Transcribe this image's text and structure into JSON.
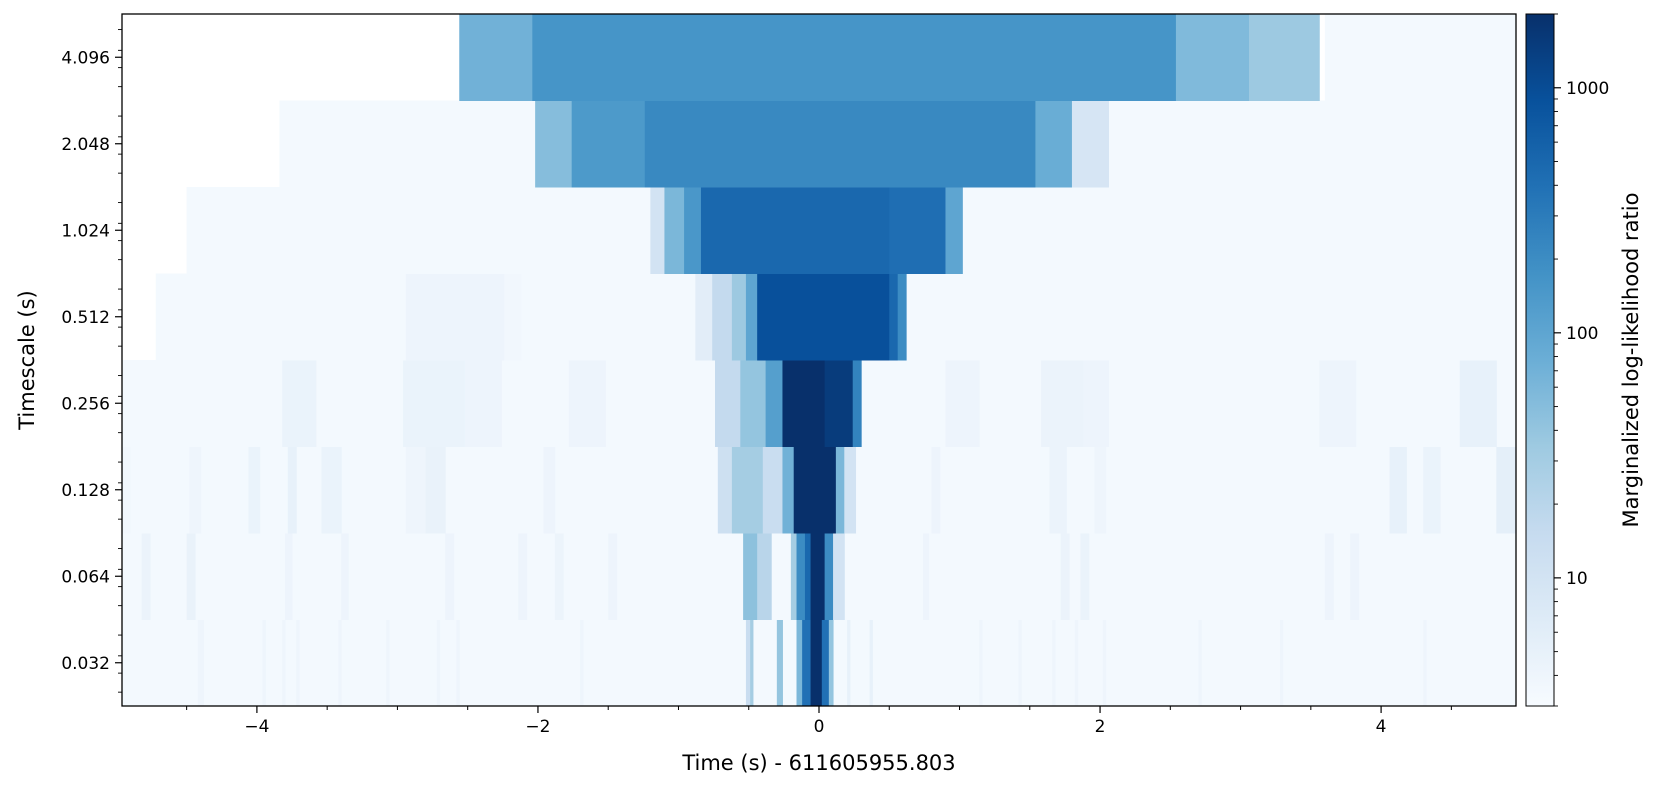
{
  "chart_data": {
    "type": "heatmap",
    "xlabel": "Time (s) - 611605955.803",
    "ylabel": "Timescale (s)",
    "colorbar_label": "Marginalized log-likelihood ratio",
    "colormap": [
      "#f7fbff",
      "#deebf7",
      "#c6dbef",
      "#9ecae1",
      "#6baed6",
      "#4292c6",
      "#2171b5",
      "#08519c",
      "#08306b"
    ],
    "colorbar_scale": "log",
    "colorbar_range": [
      3,
      2000
    ],
    "colorbar_ticks": [
      {
        "value": 10,
        "label": "10"
      },
      {
        "value": 100,
        "label": "100"
      },
      {
        "value": 1000,
        "label": "1000"
      }
    ],
    "xlim": [
      -4.96,
      4.96
    ],
    "x_ticks": [
      {
        "value": -4,
        "label": "−4"
      },
      {
        "value": -2,
        "label": "−2"
      },
      {
        "value": 0,
        "label": "0"
      },
      {
        "value": 2,
        "label": "2"
      },
      {
        "value": 4,
        "label": "4"
      }
    ],
    "y_ticks": [
      {
        "index": 0,
        "label": "0.032"
      },
      {
        "index": 1,
        "label": "0.064"
      },
      {
        "index": 2,
        "label": "0.128"
      },
      {
        "index": 3,
        "label": "0.256"
      },
      {
        "index": 4,
        "label": "0.512"
      },
      {
        "index": 5,
        "label": "1.024"
      },
      {
        "index": 6,
        "label": "2.048"
      },
      {
        "index": 7,
        "label": "4.096"
      }
    ],
    "background_value": 3.4,
    "rows": [
      {
        "timescale": 0.032,
        "cells": [
          [
            -4.96,
            4.96,
            3.4
          ],
          [
            -4.42,
            -4.38,
            4
          ],
          [
            -3.96,
            -3.94,
            4
          ],
          [
            -3.82,
            -3.8,
            4
          ],
          [
            -3.72,
            -3.7,
            4
          ],
          [
            -3.42,
            -3.4,
            4
          ],
          [
            -3.08,
            -3.06,
            4
          ],
          [
            -2.72,
            -2.7,
            4
          ],
          [
            -2.58,
            -2.56,
            4
          ],
          [
            -1.7,
            -1.68,
            4
          ],
          [
            -0.52,
            -0.49,
            14
          ],
          [
            -0.49,
            -0.47,
            30
          ],
          [
            -0.3,
            -0.26,
            40
          ],
          [
            -0.16,
            -0.12,
            60
          ],
          [
            -0.12,
            -0.06,
            400
          ],
          [
            -0.06,
            0.02,
            2000
          ],
          [
            0.02,
            0.07,
            400
          ],
          [
            0.07,
            0.1,
            40
          ],
          [
            0.2,
            0.22,
            5
          ],
          [
            0.36,
            0.38,
            5
          ],
          [
            1.14,
            1.16,
            4
          ],
          [
            1.42,
            1.44,
            4
          ],
          [
            1.66,
            1.68,
            4
          ],
          [
            1.82,
            1.84,
            4
          ],
          [
            2.02,
            2.04,
            4
          ],
          [
            2.7,
            2.72,
            4
          ],
          [
            3.28,
            3.3,
            4
          ],
          [
            4.3,
            4.32,
            4
          ]
        ]
      },
      {
        "timescale": 0.064,
        "cells": [
          [
            -4.96,
            4.96,
            3.4
          ],
          [
            -4.82,
            -4.76,
            4.5
          ],
          [
            -4.5,
            -4.44,
            4.8
          ],
          [
            -3.8,
            -3.75,
            4.2
          ],
          [
            -3.4,
            -3.35,
            4.2
          ],
          [
            -2.66,
            -2.6,
            4.2
          ],
          [
            -2.14,
            -2.08,
            4.2
          ],
          [
            -1.88,
            -1.82,
            4.3
          ],
          [
            -1.5,
            -1.44,
            4.2
          ],
          [
            -0.54,
            -0.44,
            45
          ],
          [
            -0.44,
            -0.34,
            20
          ],
          [
            -0.2,
            -0.16,
            30
          ],
          [
            -0.16,
            -0.1,
            200
          ],
          [
            -0.1,
            -0.06,
            500
          ],
          [
            -0.06,
            0.04,
            2000
          ],
          [
            0.04,
            0.1,
            200
          ],
          [
            0.1,
            0.18,
            10
          ],
          [
            0.74,
            0.78,
            4.2
          ],
          [
            1.72,
            1.78,
            4.4
          ],
          [
            1.86,
            1.92,
            4.6
          ],
          [
            3.6,
            3.66,
            4.2
          ],
          [
            3.78,
            3.84,
            4.2
          ]
        ]
      },
      {
        "timescale": 0.128,
        "cells": [
          [
            -4.96,
            4.96,
            3.4
          ],
          [
            -4.96,
            -4.9,
            3.6
          ],
          [
            -4.48,
            -4.4,
            4
          ],
          [
            -4.06,
            -3.98,
            4.6
          ],
          [
            -3.78,
            -3.72,
            5
          ],
          [
            -3.54,
            -3.4,
            4.6
          ],
          [
            -2.94,
            -2.8,
            4
          ],
          [
            -2.8,
            -2.66,
            4.8
          ],
          [
            -1.96,
            -1.88,
            4.2
          ],
          [
            -0.72,
            -0.62,
            12
          ],
          [
            -0.62,
            -0.4,
            30
          ],
          [
            -0.4,
            -0.26,
            14
          ],
          [
            -0.26,
            -0.18,
            70
          ],
          [
            -0.18,
            0.12,
            2000
          ],
          [
            0.12,
            0.18,
            60
          ],
          [
            0.18,
            0.26,
            10
          ],
          [
            0.8,
            0.86,
            4.2
          ],
          [
            1.64,
            1.76,
            4.4
          ],
          [
            1.96,
            2.04,
            4
          ],
          [
            4.06,
            4.18,
            5
          ],
          [
            4.3,
            4.42,
            4.6
          ],
          [
            4.82,
            4.96,
            5.5
          ]
        ]
      },
      {
        "timescale": 0.256,
        "cells": [
          [
            -4.96,
            4.96,
            3.4
          ],
          [
            -3.82,
            -3.58,
            4.6
          ],
          [
            -2.96,
            -2.52,
            4.6
          ],
          [
            -2.52,
            -2.26,
            4.2
          ],
          [
            -1.78,
            -1.52,
            4.2
          ],
          [
            -0.74,
            -0.56,
            16
          ],
          [
            -0.56,
            -0.38,
            40
          ],
          [
            -0.38,
            -0.26,
            120
          ],
          [
            -0.26,
            0.04,
            2000
          ],
          [
            0.04,
            0.24,
            1500
          ],
          [
            0.24,
            0.3,
            250
          ],
          [
            0.9,
            1.14,
            4.2
          ],
          [
            1.58,
            1.88,
            4.5
          ],
          [
            1.88,
            2.06,
            4.2
          ],
          [
            3.56,
            3.82,
            4.2
          ],
          [
            4.56,
            4.82,
            5
          ]
        ]
      },
      {
        "timescale": 0.512,
        "cells": [
          [
            -4.72,
            4.96,
            3.4
          ],
          [
            -2.94,
            -2.24,
            4.2
          ],
          [
            -2.24,
            -2.12,
            3.7
          ],
          [
            -0.88,
            -0.76,
            6
          ],
          [
            -0.76,
            -0.62,
            16
          ],
          [
            -0.62,
            -0.52,
            35
          ],
          [
            -0.52,
            -0.44,
            100
          ],
          [
            -0.44,
            0.5,
            900
          ],
          [
            0.5,
            0.56,
            500
          ],
          [
            0.56,
            0.62,
            200
          ]
        ]
      },
      {
        "timescale": 1.024,
        "cells": [
          [
            -4.5,
            4.96,
            3.4
          ],
          [
            -1.2,
            -1.1,
            10
          ],
          [
            -1.1,
            -0.96,
            60
          ],
          [
            -0.96,
            -0.84,
            150
          ],
          [
            -0.84,
            0.5,
            500
          ],
          [
            0.5,
            0.9,
            420
          ],
          [
            0.9,
            1.02,
            100
          ]
        ]
      },
      {
        "timescale": 2.048,
        "cells": [
          [
            -3.84,
            4.96,
            3.4
          ],
          [
            -2.02,
            -1.76,
            50
          ],
          [
            -1.76,
            -1.24,
            140
          ],
          [
            -1.24,
            1.54,
            220
          ],
          [
            1.54,
            1.8,
            80
          ],
          [
            1.8,
            2.06,
            9
          ]
        ]
      },
      {
        "timescale": 4.096,
        "cells": [
          [
            3.6,
            4.96,
            3.4
          ],
          [
            -2.56,
            -2.04,
            70
          ],
          [
            -2.04,
            2.54,
            160
          ],
          [
            2.54,
            3.06,
            55
          ],
          [
            3.06,
            3.56,
            35
          ]
        ]
      }
    ]
  }
}
